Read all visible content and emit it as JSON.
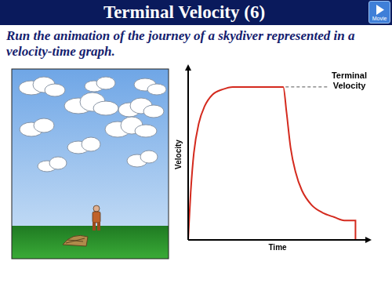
{
  "header": {
    "title": "Terminal Velocity (6)",
    "subtitle": "Run the animation of the journey of a skydiver represented in a velocity-time graph.",
    "button": "Movie"
  },
  "chart_data": {
    "type": "line",
    "x": [
      0,
      1.4,
      3.2,
      5.9,
      9.1,
      13.6,
      19.1,
      25,
      53.2,
      55,
      57.3,
      60,
      63.6,
      69,
      75,
      81.8,
      87.3,
      93.6,
      93.6
    ],
    "values": [
      0,
      27.6,
      51,
      68,
      78,
      85,
      88,
      89.5,
      89.5,
      75,
      54,
      40,
      29,
      20.5,
      16,
      13.3,
      11.4,
      11.4,
      0
    ],
    "color": "#d42a1e",
    "xlabel": "Time",
    "ylabel": "Velocity",
    "xlim": [
      0,
      100
    ],
    "ylim": [
      0,
      100
    ],
    "tick_labels": false,
    "grid": false,
    "annotations": [
      {
        "text": "Terminal Velocity",
        "y": 89.5
      }
    ]
  }
}
